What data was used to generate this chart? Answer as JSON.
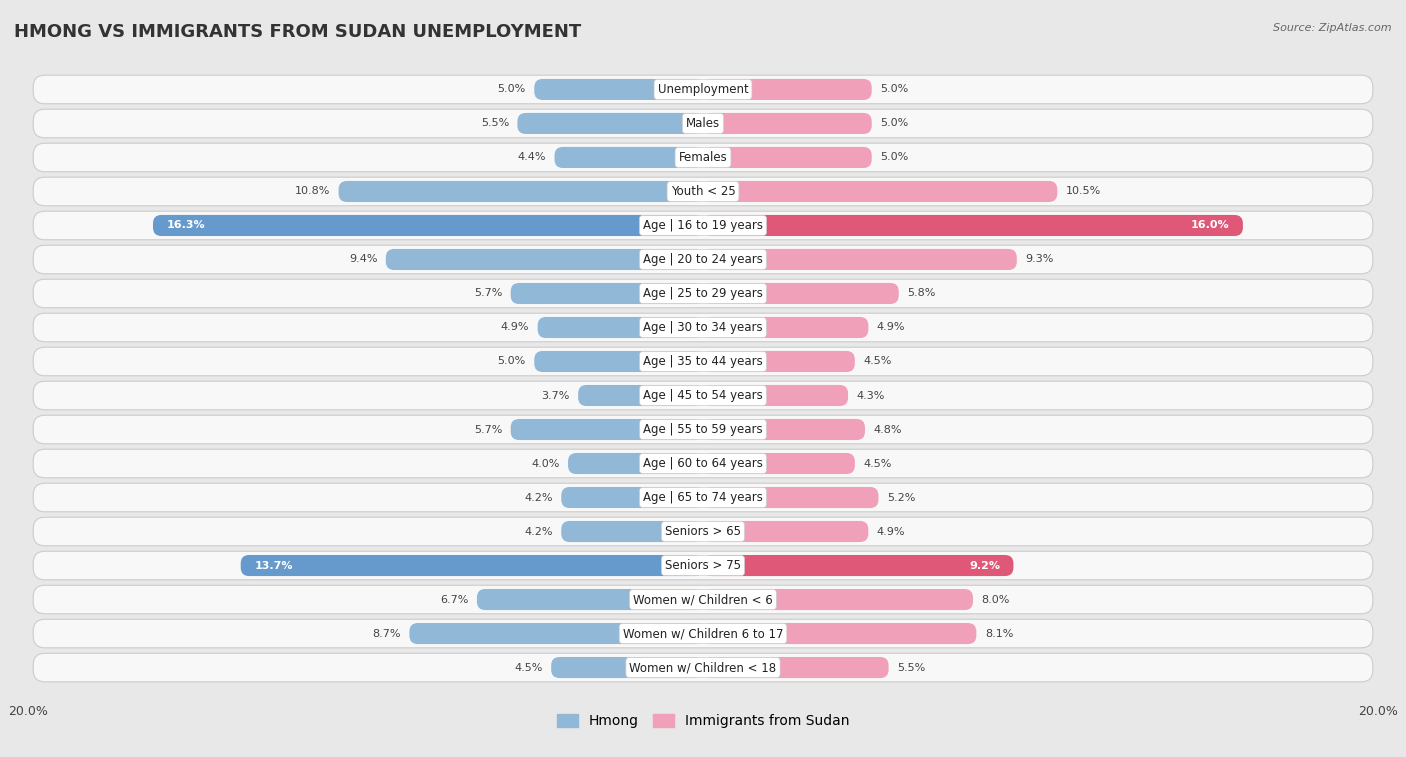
{
  "title": "HMONG VS IMMIGRANTS FROM SUDAN UNEMPLOYMENT",
  "source": "Source: ZipAtlas.com",
  "categories": [
    "Unemployment",
    "Males",
    "Females",
    "Youth < 25",
    "Age | 16 to 19 years",
    "Age | 20 to 24 years",
    "Age | 25 to 29 years",
    "Age | 30 to 34 years",
    "Age | 35 to 44 years",
    "Age | 45 to 54 years",
    "Age | 55 to 59 years",
    "Age | 60 to 64 years",
    "Age | 65 to 74 years",
    "Seniors > 65",
    "Seniors > 75",
    "Women w/ Children < 6",
    "Women w/ Children 6 to 17",
    "Women w/ Children < 18"
  ],
  "hmong_values": [
    5.0,
    5.5,
    4.4,
    10.8,
    16.3,
    9.4,
    5.7,
    4.9,
    5.0,
    3.7,
    5.7,
    4.0,
    4.2,
    4.2,
    13.7,
    6.7,
    8.7,
    4.5
  ],
  "sudan_values": [
    5.0,
    5.0,
    5.0,
    10.5,
    16.0,
    9.3,
    5.8,
    4.9,
    4.5,
    4.3,
    4.8,
    4.5,
    5.2,
    4.9,
    9.2,
    8.0,
    8.1,
    5.5
  ],
  "hmong_color_default": "#92b8d8",
  "hmong_color_highlight": "#6699cc",
  "sudan_color_default": "#f0a0b8",
  "sudan_color_highlight": "#e05878",
  "highlight_rows": [
    4,
    14
  ],
  "xlim": 20.0,
  "legend_hmong": "Hmong",
  "legend_sudan": "Immigrants from Sudan",
  "background_color": "#e8e8e8",
  "bar_background": "#f8f8f8",
  "row_border_color": "#cccccc",
  "title_fontsize": 13,
  "label_fontsize": 8.5,
  "value_fontsize": 8.0
}
